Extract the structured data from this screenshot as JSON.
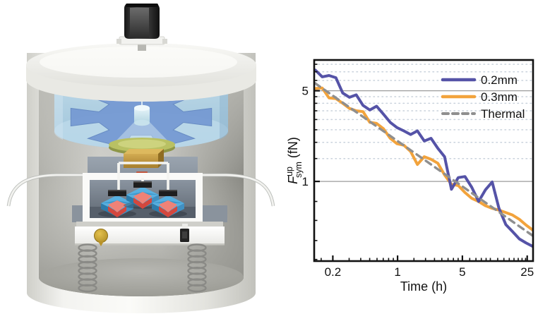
{
  "figure": {
    "background": "#ffffff",
    "panels": [
      "apparatus-render",
      "force-vs-time-chart"
    ]
  },
  "apparatus": {
    "name": "torsion-balance-vacuum-chamber-render",
    "components": [
      {
        "name": "motor-feedthrough",
        "color": "#2e2e2e"
      },
      {
        "name": "chamber-lid",
        "color": "#efefec"
      },
      {
        "name": "chamber-shell",
        "color": "#e9e9e5"
      },
      {
        "name": "chamber-interior-wall",
        "color": "#aeaea8"
      },
      {
        "name": "glass-cell",
        "color": "#aecfe3"
      },
      {
        "name": "rotor-gear",
        "color": "#7397d2"
      },
      {
        "name": "suspension-fiber",
        "color": "#eff8fb"
      },
      {
        "name": "mirror-hub",
        "color": "#d9eef6"
      },
      {
        "name": "green-optic-plate",
        "color": "#b9c163"
      },
      {
        "name": "gold-test-mass",
        "color": "#c59a3f"
      },
      {
        "name": "backdrop-panel",
        "color": "#8b95a0"
      },
      {
        "name": "signal-wire",
        "color": "#f0f0ee"
      },
      {
        "name": "shield-frame",
        "color": "#fafaf8"
      },
      {
        "name": "magnet-assembly",
        "count": 3,
        "colors": [
          "#58b0e0",
          "#d4473d",
          "#1e1e1e"
        ]
      },
      {
        "name": "baseplate",
        "color": "#f8f8f6"
      },
      {
        "name": "gold-coin",
        "color": "#d3ac33"
      },
      {
        "name": "connector-block",
        "color": "#222222"
      },
      {
        "name": "isolation-spring",
        "count": 2,
        "color": "#8a8a86"
      }
    ]
  },
  "chart_data": {
    "type": "line",
    "title": "",
    "xlabel": "Time (h)",
    "ylabel": "F_sym^up (fN)",
    "ylabel_parts": {
      "symbol": "F",
      "superscript": "up",
      "subscript": "sym",
      "unit": " (fN)"
    },
    "x_scale": "log",
    "y_scale": "log",
    "xlim": [
      0.126,
      28.9
    ],
    "ylim": [
      0.243,
      8.63
    ],
    "x_ticks": [
      {
        "value": 0.2,
        "label": "0.2"
      },
      {
        "value": 1,
        "label": "1"
      },
      {
        "value": 5,
        "label": "5"
      },
      {
        "value": 25,
        "label": "25"
      }
    ],
    "y_ticks": [
      {
        "value": 5,
        "label": "5"
      },
      {
        "value": 1,
        "label": "1"
      }
    ],
    "x_minor_ticks": [
      0.15,
      0.3,
      0.4,
      0.5,
      0.6,
      0.7,
      0.8,
      0.9,
      1.5,
      2,
      2.5,
      3,
      3.5,
      4,
      4.5,
      6,
      7,
      8,
      9,
      10,
      12,
      14,
      16,
      18,
      20,
      22,
      24
    ],
    "y_minor_ticks": [
      8,
      7,
      6,
      4.5,
      4,
      3.5,
      3,
      2.5,
      2,
      1.5,
      0.7,
      0.5,
      0.35,
      0.25
    ],
    "gridlines_solid": [
      5,
      1
    ],
    "gridlines_dotted": [
      8,
      7,
      6,
      4.5,
      4,
      3.5,
      3,
      2.5,
      2,
      1.5
    ],
    "grid_color_solid": "#9b9b9b",
    "grid_color_dotted": "#c9d2dc",
    "axis_color": "#111111",
    "legend": {
      "position": "top-right"
    },
    "series": [
      {
        "name": "0.2mm",
        "color": "#5553a7",
        "style": "solid",
        "width": 4,
        "x": [
          0.13,
          0.154,
          0.182,
          0.216,
          0.256,
          0.303,
          0.358,
          0.424,
          0.502,
          0.594,
          0.703,
          0.833,
          0.986,
          1.167,
          1.382,
          1.636,
          1.937,
          2.293,
          2.715,
          3.214,
          3.805,
          4.505,
          5.333,
          6.314,
          7.475,
          8.85,
          10.48,
          12.4,
          14.68,
          17.38,
          20.58,
          24.36,
          28.84
        ],
        "y": [
          7.2,
          6.4,
          6.55,
          6.3,
          4.8,
          4.45,
          4.65,
          3.85,
          3.55,
          3.8,
          3.3,
          2.85,
          2.6,
          2.45,
          2.3,
          2.45,
          2.05,
          2.15,
          1.8,
          1.55,
          0.87,
          1.07,
          1.09,
          0.9,
          0.7,
          0.86,
          0.99,
          0.62,
          0.465,
          0.41,
          0.36,
          0.335,
          0.315
        ]
      },
      {
        "name": "0.3mm",
        "color": "#f2a33c",
        "style": "solid",
        "width": 4,
        "x": [
          0.13,
          0.154,
          0.182,
          0.216,
          0.256,
          0.303,
          0.358,
          0.424,
          0.502,
          0.594,
          0.703,
          0.833,
          0.986,
          1.167,
          1.382,
          1.636,
          1.937,
          2.293,
          2.715,
          3.214,
          3.805,
          4.505,
          5.333,
          6.314,
          7.475,
          8.85,
          10.48,
          12.4,
          14.68,
          17.38,
          20.58,
          24.36,
          28.84
        ],
        "y": [
          5.2,
          5.25,
          4.4,
          4.35,
          4.0,
          3.65,
          3.5,
          3.45,
          2.85,
          2.8,
          2.55,
          2.15,
          1.95,
          1.9,
          1.7,
          1.35,
          1.55,
          1.48,
          1.38,
          1.12,
          0.95,
          0.93,
          0.82,
          0.74,
          0.7,
          0.65,
          0.62,
          0.6,
          0.575,
          0.55,
          0.51,
          0.46,
          0.42
        ]
      },
      {
        "name": "Thermal",
        "color": "#8f8f8f",
        "style": "dashed",
        "width": 3.4,
        "note": "power law ~ t^-1/2",
        "x": [
          0.128,
          28.84
        ],
        "y": [
          5.73,
          0.38
        ]
      }
    ]
  }
}
